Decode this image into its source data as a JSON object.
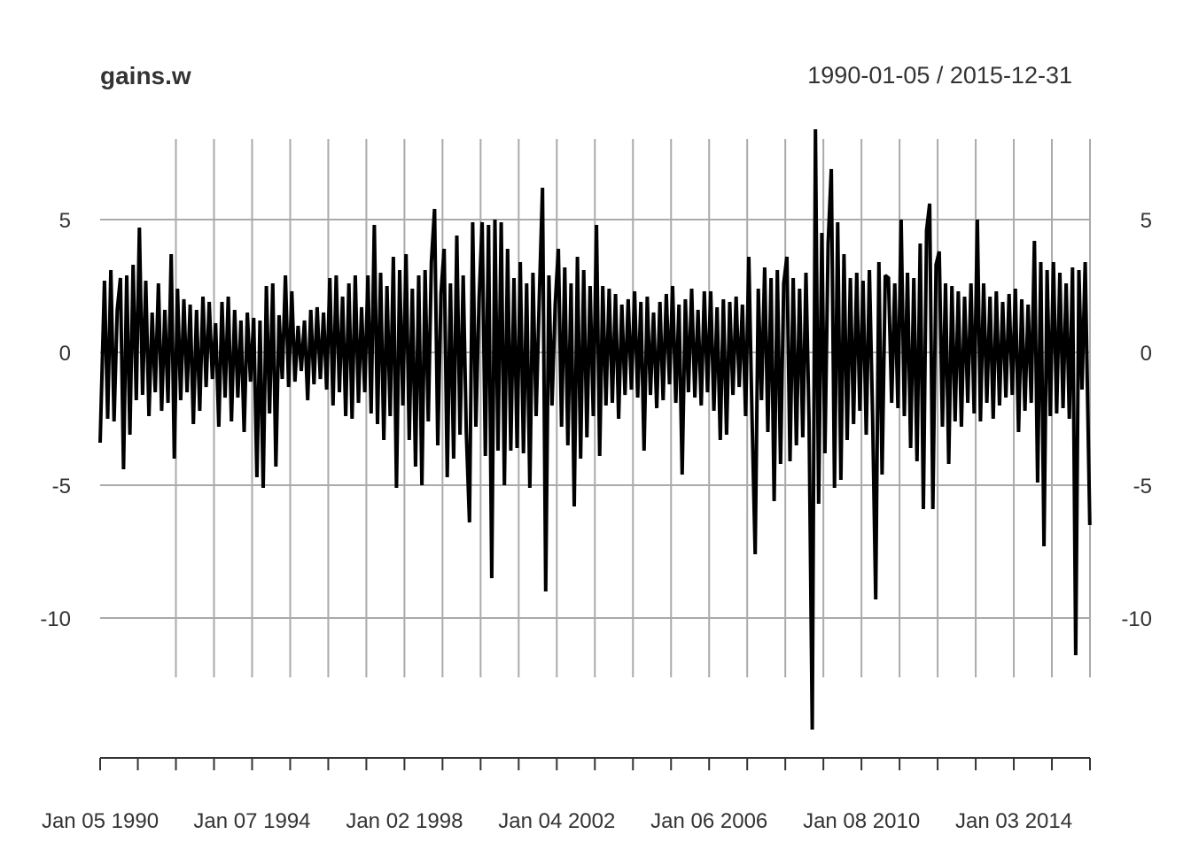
{
  "chart_data": {
    "type": "line",
    "title": "gains.w",
    "subtitle": "1990-01-05 / 2015-12-31",
    "x_start": "1990-01-05",
    "x_end": "2015-12-31",
    "sampling_note_values": "monthly approximation of weekly series, indexed by year",
    "ylim": [
      -14.2,
      8.4
    ],
    "y_ticks": [
      5,
      0,
      -5,
      -10
    ],
    "y_tick_labels": [
      "5",
      "0",
      "-5",
      "-10"
    ],
    "x_tick_labels": [
      "Jan 05 1990",
      "Jan 07 1994",
      "Jan 02 1998",
      "Jan 04 2002",
      "Jan 06 2006",
      "Jan 08 2010",
      "Jan 03 2014"
    ],
    "x_tick_label_years": [
      1990,
      1994,
      1998,
      2002,
      2006,
      2010,
      2014
    ],
    "grid": true,
    "line_color": "#000000",
    "grid_color": "#aaaaaa",
    "values_by_year": {
      "1990": [
        -3.4,
        2.7,
        -2.5,
        3.1,
        -2.6,
        1.6,
        2.8,
        -4.4,
        2.9,
        -3.1,
        3.3,
        -1.8
      ],
      "1991": [
        4.7,
        -1.6,
        2.7,
        -2.4,
        1.5,
        -1.5,
        2.6,
        -2.2,
        1.6,
        -1.9,
        3.7,
        -4.0
      ],
      "1992": [
        2.4,
        -1.8,
        2.0,
        -1.5,
        1.8,
        -2.7,
        1.6,
        -2.2,
        2.1,
        -1.3,
        1.9,
        -1.0
      ],
      "1993": [
        1.1,
        -2.8,
        1.9,
        -1.7,
        2.1,
        -2.6,
        1.6,
        -1.7,
        1.2,
        -3.0,
        1.5,
        -1.1
      ],
      "1994": [
        1.3,
        -4.7,
        1.2,
        -5.1,
        2.5,
        -2.3,
        2.6,
        -4.3,
        1.4,
        -1.0,
        2.9,
        -1.3
      ],
      "1995": [
        2.3,
        -1.1,
        1.0,
        -0.7,
        1.2,
        -1.8,
        1.6,
        -1.2,
        1.7,
        -1.0,
        1.5,
        -1.4
      ],
      "1996": [
        2.8,
        -2.0,
        2.9,
        -1.5,
        2.1,
        -2.4,
        2.6,
        -2.5,
        2.9,
        -1.9,
        1.7,
        -1.5
      ],
      "1997": [
        2.9,
        -2.3,
        4.8,
        -2.7,
        3.0,
        -3.3,
        2.5,
        -2.4,
        3.6,
        -5.1,
        3.1,
        -2.0
      ],
      "1998": [
        3.7,
        -3.3,
        2.4,
        -4.3,
        2.9,
        -5.0,
        3.1,
        -2.6,
        3.4,
        5.4,
        -3.5,
        2.2
      ],
      "1999": [
        3.9,
        -4.7,
        2.6,
        -4.0,
        4.4,
        -3.1,
        2.9,
        -3.0,
        -6.4,
        4.9,
        -2.8,
        2.0
      ],
      "2000": [
        4.9,
        -3.9,
        4.8,
        -8.5,
        5.0,
        -3.7,
        4.9,
        -5.0,
        3.9,
        -3.7,
        2.8,
        -3.6
      ],
      "2001": [
        3.4,
        -3.8,
        2.6,
        -5.1,
        3.0,
        -2.4,
        2.1,
        6.2,
        -9.0,
        2.9,
        -2.0,
        1.8
      ],
      "2002": [
        3.9,
        -2.8,
        3.2,
        -3.5,
        2.6,
        -5.8,
        3.6,
        -4.0,
        3.1,
        -3.2,
        2.5,
        -2.4
      ],
      "2003": [
        4.8,
        -3.9,
        2.5,
        -2.0,
        2.4,
        -1.9,
        2.2,
        -2.5,
        1.8,
        -1.6,
        2.0,
        -1.4
      ],
      "2004": [
        2.3,
        -1.7,
        1.9,
        -3.7,
        2.1,
        -1.6,
        1.5,
        -2.1,
        1.9,
        -1.8,
        2.2,
        -1.2
      ],
      "2005": [
        2.5,
        -1.9,
        1.8,
        -4.6,
        2.0,
        -1.5,
        2.4,
        -1.7,
        1.6,
        -2.0,
        2.3,
        -1.5
      ],
      "2006": [
        2.3,
        -2.2,
        1.7,
        -3.3,
        2.0,
        -3.1,
        1.9,
        -1.6,
        2.1,
        -1.3,
        1.8,
        -2.4
      ],
      "2007": [
        3.6,
        -2.4,
        -7.6,
        2.4,
        -1.8,
        3.2,
        -3.0,
        2.8,
        -5.6,
        3.1,
        -4.2,
        2.6
      ],
      "2008": [
        3.6,
        -4.1,
        2.8,
        -3.5,
        2.4,
        -3.2,
        3.0,
        -2.6,
        -14.2,
        8.4,
        -5.7,
        4.5
      ],
      "2009": [
        -3.8,
        4.1,
        6.9,
        -5.1,
        4.9,
        -4.8,
        3.7,
        -3.3,
        2.8,
        -2.7,
        3.0,
        -2.2
      ],
      "2010": [
        2.7,
        -3.1,
        3.1,
        -2.4,
        -9.3,
        3.4,
        -4.6,
        2.9,
        2.8,
        -1.9,
        2.6,
        -2.1
      ],
      "2011": [
        5.0,
        -2.4,
        3.0,
        -3.6,
        2.8,
        -4.1,
        4.1,
        -5.9,
        4.6,
        5.6,
        -5.9,
        3.3
      ],
      "2012": [
        3.8,
        -2.8,
        2.6,
        -4.2,
        2.5,
        -2.6,
        2.3,
        -2.8,
        2.1,
        -1.9,
        2.6,
        -2.3
      ],
      "2013": [
        5.0,
        -2.6,
        2.6,
        -1.9,
        2.1,
        -2.5,
        2.3,
        -2.0,
        1.9,
        -1.7,
        2.2,
        -1.6
      ],
      "2014": [
        2.4,
        -3.0,
        2.0,
        -2.2,
        1.8,
        -1.9,
        4.2,
        -4.9,
        3.4,
        -7.3,
        3.1,
        -2.4
      ],
      "2015": [
        3.4,
        -2.3,
        3.0,
        -2.1,
        2.6,
        -2.5,
        3.2,
        -11.4,
        3.1,
        -1.4,
        3.4,
        -6.5
      ]
    }
  }
}
